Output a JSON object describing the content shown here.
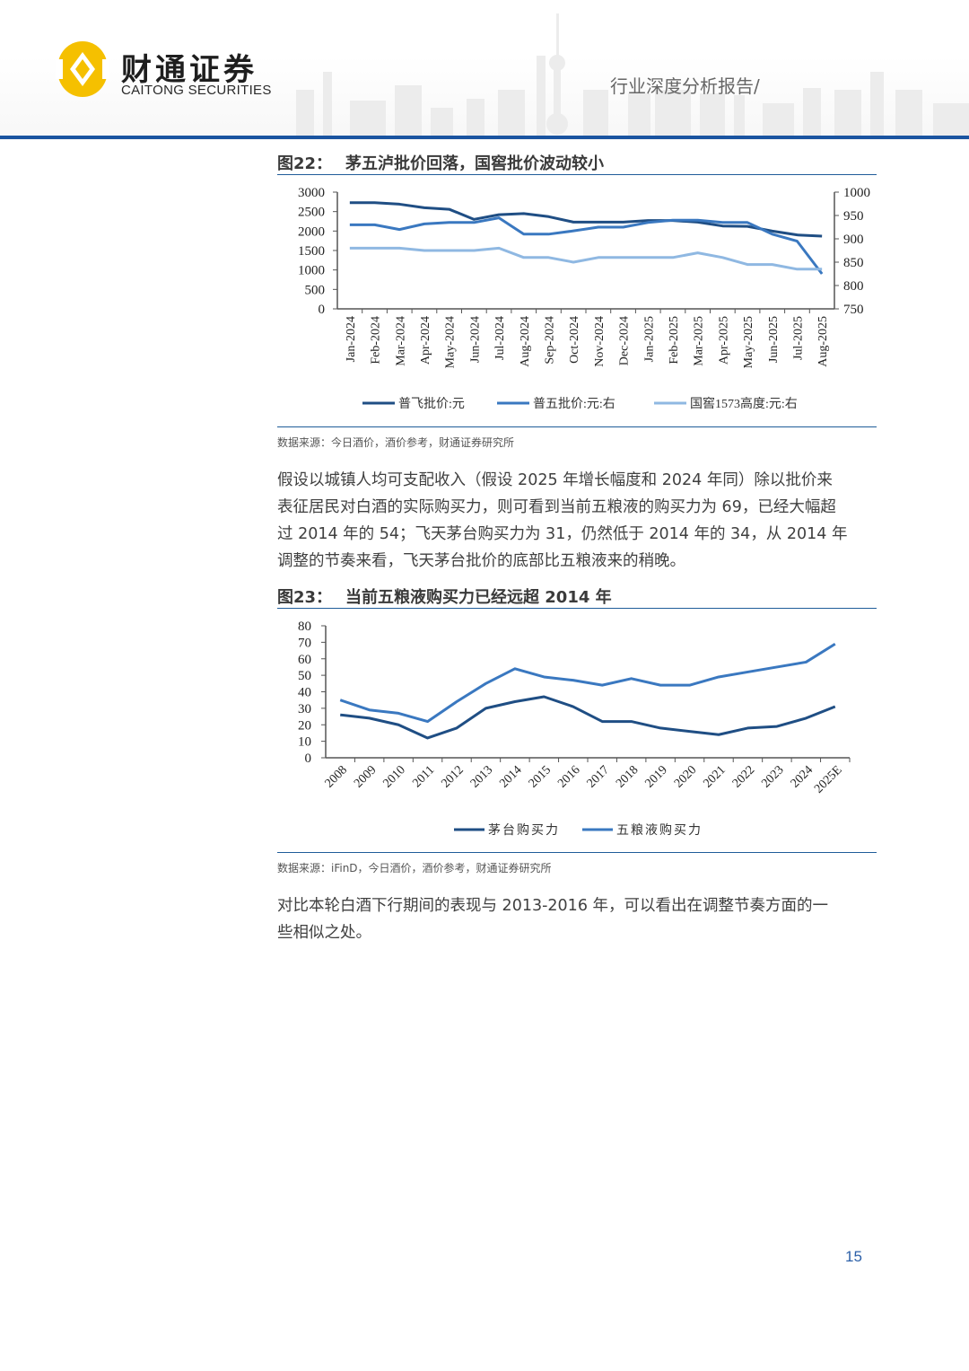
{
  "header": {
    "logo_cn": "财通证券",
    "logo_en": "CAITONG SECURITIES",
    "report_type": "行业深度分析报告/",
    "brand_color": "#1a54a0",
    "logo_color": "#f5c000"
  },
  "figure22": {
    "number": "图22：",
    "title": "茅五泸批价回落，国窖批价波动较小",
    "source": "数据来源：今日酒价，酒价参考，财通证券研究所",
    "legend": [
      "普飞批价:元",
      "普五批价:元:右",
      "国窖1573高度:元:右"
    ]
  },
  "paragraph1": {
    "lines": [
      "假设以城镇人均可支配收入（假设 2025 年增长幅度和 2024 年同）除以批价来",
      "表征居民对白酒的实际购买力，则可看到当前五粮液的购买力为 69，已经大幅超",
      "过 2014 年的 54；飞天茅台购买力为 31，仍然低于 2014 年的 34，从 2014 年",
      "调整的节奏来看，飞天茅台批价的底部比五粮液来的稍晚。"
    ]
  },
  "figure23": {
    "number": "图23：",
    "title": "当前五粮液购买力已经远超 2014 年",
    "source": "数据来源：iFinD，今日酒价，酒价参考，财通证券研究所",
    "legend": [
      "茅台购买力",
      "五粮液购买力"
    ]
  },
  "paragraph2": {
    "lines": [
      "对比本轮白酒下行期间的表现与 2013-2016 年，可以看出在调整节奏方面的一",
      "些相似之处。"
    ]
  },
  "footer": {
    "page_number": "15"
  },
  "chart_data": [
    {
      "type": "line",
      "title": "茅五泸批价回落，国窖批价波动较小",
      "categories": [
        "Jan-2024",
        "Feb-2024",
        "Mar-2024",
        "Apr-2024",
        "May-2024",
        "Jun-2024",
        "Jul-2024",
        "Aug-2024",
        "Sep-2024",
        "Oct-2024",
        "Nov-2024",
        "Dec-2024",
        "Jan-2025",
        "Feb-2025",
        "Mar-2025",
        "Apr-2025",
        "May-2025",
        "Jun-2025",
        "Jul-2025",
        "Aug-2025"
      ],
      "y_left": {
        "ticks": [
          "0",
          "500",
          "1000",
          "1500",
          "2000",
          "2500",
          "3000"
        ],
        "ylim": [
          0,
          3000
        ]
      },
      "y_right": {
        "ticks": [
          "750",
          "800",
          "850",
          "900",
          "950",
          "1000"
        ],
        "ylim": [
          750,
          1000
        ]
      },
      "series": [
        {
          "name": "普飞批价:元",
          "axis": "left",
          "color": "#1f4e84",
          "values": [
            2730,
            2730,
            2690,
            2600,
            2560,
            2300,
            2420,
            2450,
            2370,
            2230,
            2230,
            2230,
            2270,
            2270,
            2230,
            2130,
            2120,
            2000,
            1900,
            1870
          ]
        },
        {
          "name": "普五批价:元:右",
          "axis": "right",
          "color": "#3a78c0",
          "values": [
            930,
            930,
            920,
            932,
            935,
            935,
            945,
            910,
            910,
            917,
            925,
            925,
            935,
            940,
            940,
            935,
            935,
            910,
            895,
            825
          ]
        },
        {
          "name": "国窖1573高度:元:右",
          "axis": "right",
          "color": "#8fb8e2",
          "values": [
            880,
            880,
            880,
            875,
            875,
            875,
            880,
            860,
            860,
            850,
            860,
            860,
            860,
            860,
            870,
            860,
            845,
            845,
            835,
            835
          ]
        }
      ],
      "legend_position": "bottom",
      "grid": false
    },
    {
      "type": "line",
      "title": "当前五粮液购买力已经远超 2014 年",
      "categories": [
        "2008",
        "2009",
        "2010",
        "2011",
        "2012",
        "2013",
        "2014",
        "2015",
        "2016",
        "2017",
        "2018",
        "2019",
        "2020",
        "2021",
        "2022",
        "2023",
        "2024",
        "2025E"
      ],
      "y": {
        "ticks": [
          "0",
          "10",
          "20",
          "30",
          "40",
          "50",
          "60",
          "70",
          "80"
        ],
        "ylim": [
          0,
          80
        ]
      },
      "series": [
        {
          "name": "茅台购买力",
          "color": "#1f4e84",
          "values": [
            26,
            24,
            20,
            12,
            18,
            30,
            34,
            37,
            31,
            22,
            22,
            18,
            16,
            14,
            18,
            19,
            24,
            31
          ]
        },
        {
          "name": "五粮液购买力",
          "color": "#3a78c0",
          "values": [
            35,
            29,
            27,
            22,
            34,
            45,
            54,
            49,
            47,
            44,
            48,
            44,
            44,
            49,
            52,
            55,
            58,
            69
          ]
        }
      ],
      "legend_position": "bottom",
      "grid": false
    }
  ]
}
